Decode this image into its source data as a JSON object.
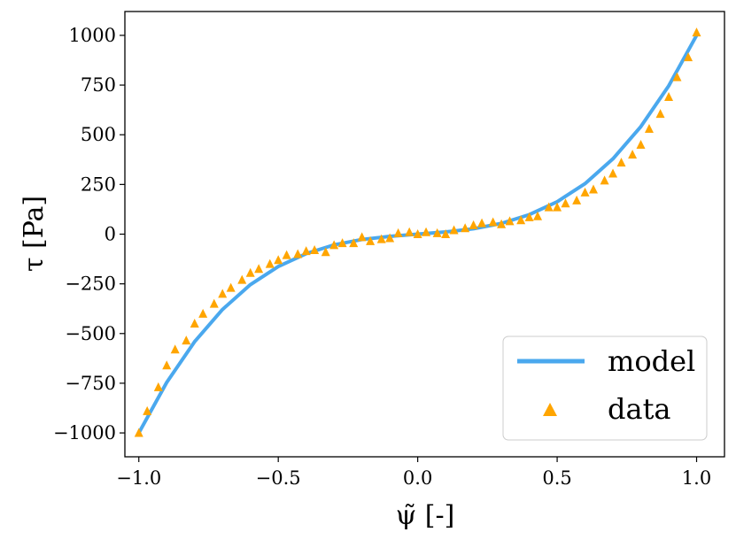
{
  "chart_data": {
    "type": "line",
    "title": "",
    "xlabel": "ψ̃ [-]",
    "ylabel": "τ [Pa]",
    "xlim": [
      -1.05,
      1.1
    ],
    "ylim": [
      -1120,
      1120
    ],
    "xticks": [
      -1.0,
      -0.5,
      0.0,
      0.5,
      1.0
    ],
    "xtick_labels": [
      "−1.0",
      "−0.5",
      "0.0",
      "0.5",
      "1.0"
    ],
    "yticks": [
      1000,
      750,
      500,
      250,
      0,
      -250,
      -500,
      -750,
      -1000
    ],
    "ytick_labels": [
      "1000",
      "750",
      "500",
      "250",
      "0",
      "−250",
      "−500",
      "−750",
      "−1000"
    ],
    "grid": false,
    "legend_position": "bottom-right",
    "series": [
      {
        "name": "model",
        "kind": "line",
        "color": "#4aa8ee",
        "model": "tau = 100*psi + 900*psi^3",
        "x": [
          -1.0,
          -0.9,
          -0.8,
          -0.7,
          -0.6,
          -0.5,
          -0.4,
          -0.3,
          -0.2,
          -0.1,
          0.0,
          0.1,
          0.2,
          0.3,
          0.4,
          0.5,
          0.6,
          0.7,
          0.8,
          0.9,
          1.0
        ],
        "y": [
          -1000,
          -746,
          -541,
          -379,
          -254,
          -163,
          -98,
          -54,
          -27,
          -11,
          0,
          11,
          27,
          54,
          98,
          163,
          254,
          379,
          541,
          746,
          1000
        ]
      },
      {
        "name": "data",
        "kind": "scatter",
        "color": "#ffa500",
        "marker": "triangle",
        "x": [
          -1.0,
          -0.97,
          -0.93,
          -0.9,
          -0.87,
          -0.83,
          -0.8,
          -0.77,
          -0.73,
          -0.7,
          -0.67,
          -0.63,
          -0.6,
          -0.57,
          -0.53,
          -0.5,
          -0.47,
          -0.43,
          -0.4,
          -0.37,
          -0.33,
          -0.3,
          -0.27,
          -0.23,
          -0.2,
          -0.17,
          -0.13,
          -0.1,
          -0.07,
          -0.03,
          0.0,
          0.03,
          0.07,
          0.1,
          0.13,
          0.17,
          0.2,
          0.23,
          0.27,
          0.3,
          0.33,
          0.37,
          0.4,
          0.43,
          0.47,
          0.5,
          0.53,
          0.57,
          0.6,
          0.63,
          0.67,
          0.7,
          0.73,
          0.77,
          0.8,
          0.83,
          0.87,
          0.9,
          0.93,
          0.97,
          1.0
        ],
        "y": [
          -1000,
          -890,
          -770,
          -660,
          -580,
          -535,
          -450,
          -400,
          -350,
          -300,
          -270,
          -230,
          -195,
          -175,
          -150,
          -130,
          -105,
          -100,
          -85,
          -80,
          -90,
          -55,
          -45,
          -45,
          -15,
          -35,
          -25,
          -20,
          5,
          10,
          0,
          10,
          5,
          0,
          20,
          30,
          45,
          55,
          60,
          50,
          65,
          70,
          85,
          90,
          135,
          135,
          155,
          170,
          210,
          225,
          270,
          305,
          360,
          400,
          450,
          530,
          605,
          690,
          790,
          890,
          1015
        ]
      }
    ]
  }
}
